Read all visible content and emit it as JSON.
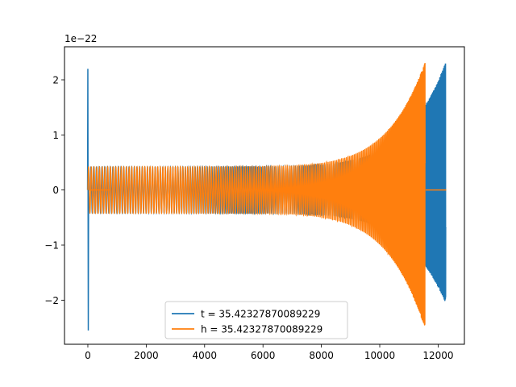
{
  "chart_data": {
    "type": "line",
    "title": "",
    "xlabel": "",
    "ylabel": "",
    "y_offset_text": "1e−22",
    "xlim": [
      -800,
      12900
    ],
    "ylim": [
      -2.8,
      2.6
    ],
    "x_ticks": [
      0,
      2000,
      4000,
      6000,
      8000,
      10000,
      12000
    ],
    "x_tick_labels": [
      "0",
      "2000",
      "4000",
      "6000",
      "8000",
      "10000",
      "12000"
    ],
    "y_ticks": [
      -2,
      -1,
      0,
      1,
      2
    ],
    "y_tick_labels": [
      "−2",
      "−1",
      "0",
      "1",
      "2"
    ],
    "grid": false,
    "legend_position": "lower center",
    "series": [
      {
        "name": "t = 35.42327870089229",
        "color": "#1f77b4",
        "burst": {
          "x": 0,
          "peak_pos": 2.2,
          "peak_neg": -2.55
        },
        "chirp": {
          "x_start": 80,
          "x_end": 12280,
          "amp_start": 0.42,
          "amp_end": 2.35,
          "neg_amp_end": 2.08,
          "cycles_visible_start": 0.0105
        },
        "tail_x": null
      },
      {
        "name": "h = 35.42327870089229",
        "color": "#ff7f0e",
        "burst": null,
        "zero_segment": [
          60,
          780
        ],
        "chirp": {
          "x_start": 0,
          "x_end": 11570,
          "amp_start": 0.42,
          "amp_end": 2.35,
          "neg_amp_end": 2.55,
          "cycles_visible_start": 0.0105
        },
        "tail_x": [
          11570,
          12280
        ]
      }
    ]
  }
}
